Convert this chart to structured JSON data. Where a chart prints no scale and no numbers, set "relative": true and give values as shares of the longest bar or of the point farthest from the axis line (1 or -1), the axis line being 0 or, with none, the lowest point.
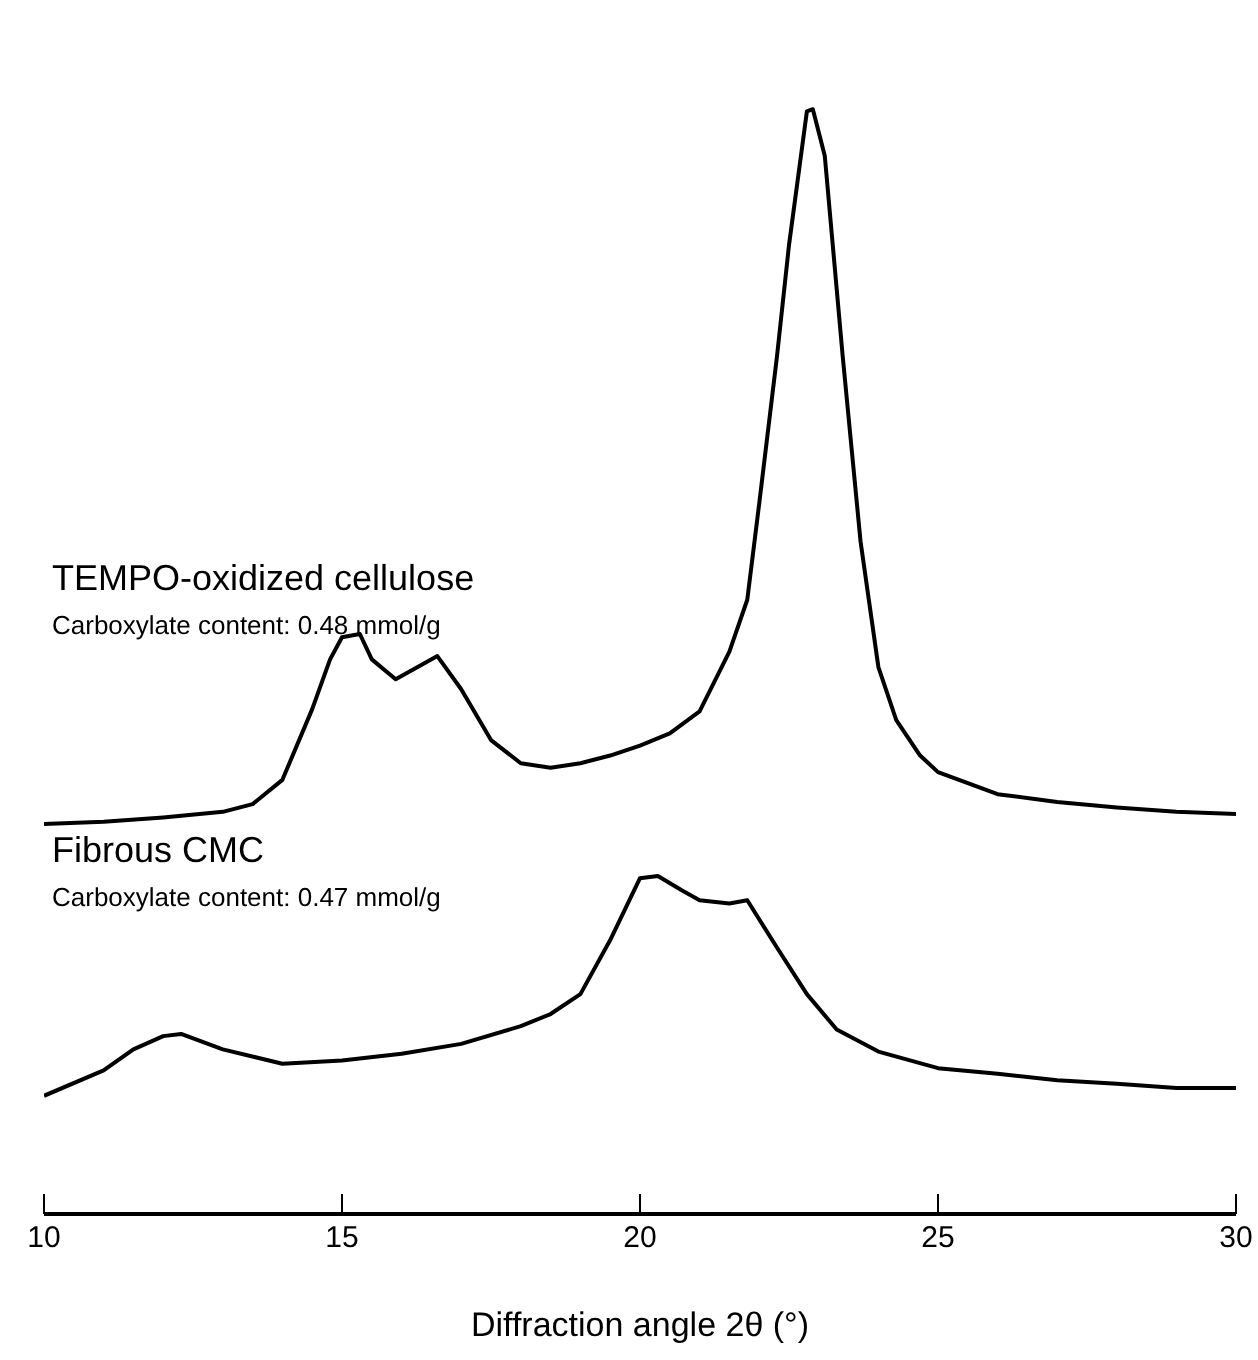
{
  "chart_data": {
    "type": "line",
    "relative": true,
    "xlabel": "Diffraction angle 2θ (°)",
    "xlim": [
      10,
      30
    ],
    "xticks": [
      10,
      15,
      20,
      25,
      30
    ],
    "tick_labels": "x",
    "marker": "none",
    "line_style": "solid",
    "annotations": [
      "TEMPO-oxidized cellulose",
      "Carboxylate content: 0.48 mmol/g",
      "Fibrous CMC",
      "Carboxylate content: 0.47 mmol/g"
    ],
    "series": [
      {
        "color": "#000000",
        "x": [
          10,
          11,
          12,
          13,
          13.5,
          14,
          14.5,
          14.8,
          15,
          15.3,
          15.5,
          15.9,
          16.3,
          16.6,
          17,
          17.5,
          18,
          18.5,
          19,
          19.5,
          20,
          20.5,
          21,
          21.5,
          21.8,
          22,
          22.3,
          22.5,
          22.8,
          22.9,
          23.1,
          23.4,
          23.7,
          24,
          24.3,
          24.7,
          25,
          26,
          27,
          28,
          29,
          30
        ],
        "values": [
          0.353,
          0.355,
          0.359,
          0.364,
          0.371,
          0.393,
          0.457,
          0.502,
          0.522,
          0.525,
          0.502,
          0.484,
          0.496,
          0.505,
          0.475,
          0.429,
          0.408,
          0.404,
          0.408,
          0.415,
          0.424,
          0.435,
          0.455,
          0.509,
          0.556,
          0.643,
          0.777,
          0.877,
          0.998,
          1,
          0.958,
          0.777,
          0.609,
          0.495,
          0.447,
          0.415,
          0.4,
          0.38,
          0.373,
          0.368,
          0.364,
          0.362
        ]
      },
      {
        "color": "#000000",
        "x": [
          10,
          11,
          11.5,
          12,
          12.3,
          13,
          14,
          15,
          16,
          17,
          18,
          18.5,
          19,
          19.5,
          20,
          20.3,
          20.7,
          21,
          21.5,
          21.8,
          22.3,
          22.8,
          23.3,
          24,
          25,
          26,
          27,
          28,
          29,
          30
        ],
        "values": [
          0.107,
          0.13,
          0.149,
          0.161,
          0.163,
          0.149,
          0.136,
          0.139,
          0.145,
          0.154,
          0.17,
          0.181,
          0.199,
          0.248,
          0.304,
          0.306,
          0.293,
          0.284,
          0.281,
          0.284,
          0.241,
          0.199,
          0.167,
          0.147,
          0.132,
          0.127,
          0.121,
          0.118,
          0.114,
          0.114
        ]
      }
    ]
  }
}
